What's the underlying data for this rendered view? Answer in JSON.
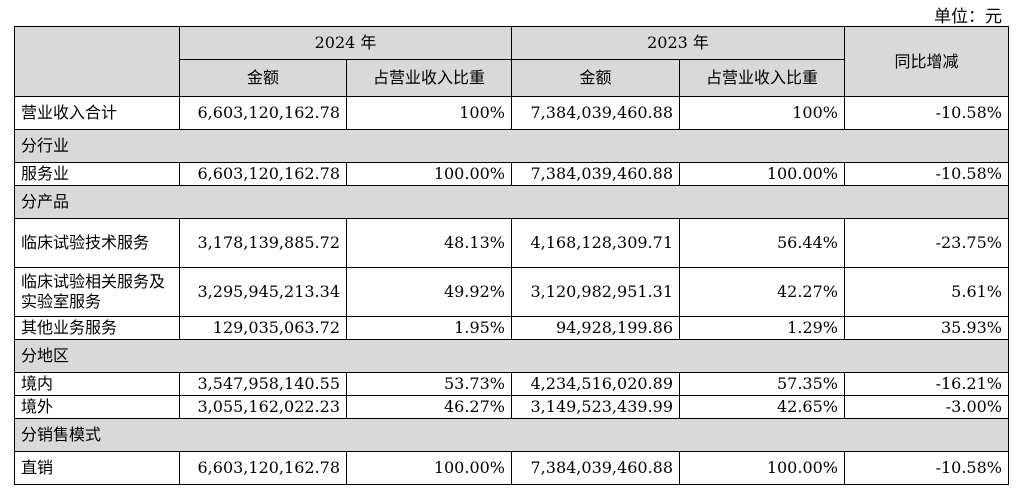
{
  "unit": "单位：元",
  "header": {
    "year_2024": "2024 年",
    "year_2023": "2023 年",
    "amount": "金额",
    "share": "占营业收入比重",
    "yoy": "同比增减"
  },
  "rows": [
    {
      "label": "营业收入合计",
      "a24": "6,603,120,162.78",
      "s24": "100%",
      "a23": "7,384,039,460.88",
      "s23": "100%",
      "yoy": "-10.58%"
    },
    {
      "section": "分行业"
    },
    {
      "label": "服务业",
      "a24": "6,603,120,162.78",
      "s24": "100.00%",
      "a23": "7,384,039,460.88",
      "s23": "100.00%",
      "yoy": "-10.58%"
    },
    {
      "section": "分产品"
    },
    {
      "label": "临床试验技术服务",
      "a24": "3,178,139,885.72",
      "s24": "48.13%",
      "a23": "4,168,128,309.71",
      "s23": "56.44%",
      "yoy": "-23.75%"
    },
    {
      "label": "临床试验相关服务及实验室服务",
      "a24": "3,295,945,213.34",
      "s24": "49.92%",
      "a23": "3,120,982,951.31",
      "s23": "42.27%",
      "yoy": "5.61%"
    },
    {
      "label": "其他业务服务",
      "a24": "129,035,063.72",
      "s24": "1.95%",
      "a23": "94,928,199.86",
      "s23": "1.29%",
      "yoy": "35.93%"
    },
    {
      "section": "分地区"
    },
    {
      "label": "境内",
      "a24": "3,547,958,140.55",
      "s24": "53.73%",
      "a23": "4,234,516,020.89",
      "s23": "57.35%",
      "yoy": "-16.21%"
    },
    {
      "label": "境外",
      "a24": "3,055,162,022.23",
      "s24": "46.27%",
      "a23": "3,149,523,439.99",
      "s23": "42.65%",
      "yoy": "-3.00%"
    },
    {
      "section": "分销售模式"
    },
    {
      "label": "直销",
      "a24": "6,603,120,162.78",
      "s24": "100.00%",
      "a23": "7,384,039,460.88",
      "s23": "100.00%",
      "yoy": "-10.58%"
    }
  ]
}
